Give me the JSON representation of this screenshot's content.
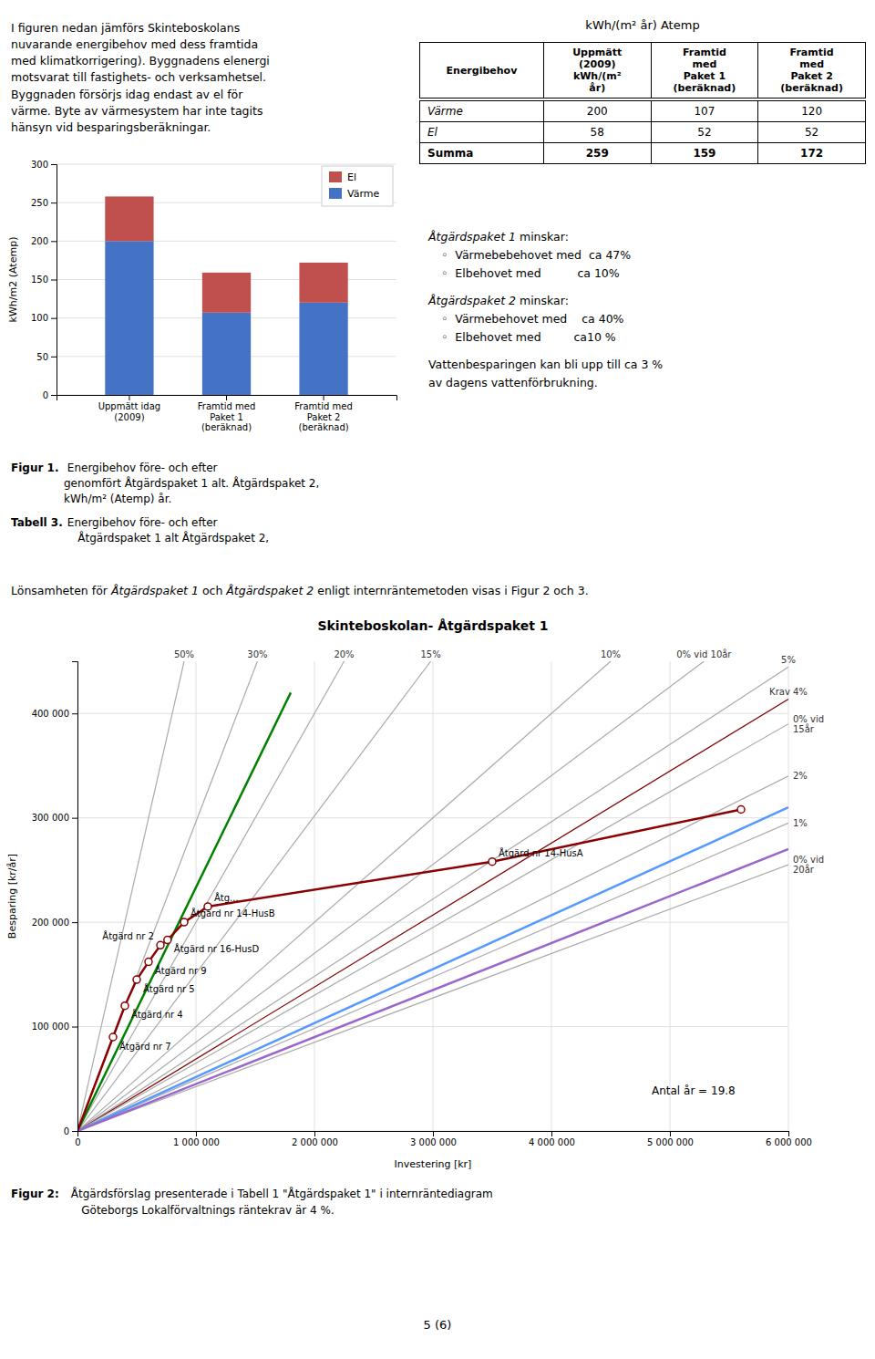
{
  "page": {
    "text_left": "I figuren nedan jämförs Skinteboskolans\nnuvarande energibehov med dess framtida\nmed klimatkorrigering). Byggnadens elenergi\nmotsvarat till fastighets- och verksamhetsel.\nByggnaden försörjs idag endast av el för\nvärme. Byte av värmesystem har inte tagits\nhänsyn vid besparingsberäkningar.",
    "table": {
      "title": "kWh/(m² år) Atemp",
      "headers": [
        "Energibehov",
        "Uppmätt\n(2009)\nkWh/(m²\når)",
        "Framtid\nmed\nPaket 1\n(beräknad)",
        "Framtid\nmed\nPaket 2\n(beräknad)"
      ],
      "rows": [
        [
          "Värme",
          "200",
          "107",
          "120"
        ],
        [
          "El",
          "58",
          "52",
          "52"
        ],
        [
          "Summa",
          "259",
          "159",
          "172"
        ]
      ]
    },
    "summary": [
      {
        "heading": "Åtgärdspaket 1",
        "text": " minskar:",
        "items": [
          "◦  Värmebebehovet med  ca 47%",
          "◦  Elbehovet med          ca 10%"
        ]
      },
      {
        "heading": "Åtgärdspaket 2",
        "text": " minskar:",
        "items": [
          "◦  Värmebehovet med    ca 40%",
          "◦  Elbehovet med         ca10 %"
        ]
      }
    ],
    "summary_note": "Vattenbesparingen kan bli upp till ca 3 %\nav dagens vattenförbrukning.",
    "captions": [
      {
        "label": "Figur 1.",
        "text": " Energibehov före- och efter\ngenomfört Åtgärdspaket 1 alt. Åtgärdspaket 2,\nkWh/m² (Atemp) år."
      },
      {
        "label": "Tabell 3.",
        "text": " Energibehov före- och efter\n    Åtgärdspaket 1 alt Åtgärdspaket 2,"
      }
    ],
    "intro_line": [
      {
        "text": "Lönsamheten för "
      },
      {
        "text": "Åtgärdspaket 1",
        "italic": true
      },
      {
        "text": " och "
      },
      {
        "text": "Åtgärdspaket 2",
        "italic": true
      },
      {
        "text": " enligt internräntemetoden visas i Figur 2 och 3."
      }
    ],
    "figure2_caption": {
      "label": "Figur 2:",
      "text": " Åtgärdsförslag presenterade i Tabell 1 \"Åtgärdspaket 1\" i internräntediagram\n    Göteborgs Lokalförvaltnings räntekrav är 4 %."
    },
    "page_number": "5 (6)"
  },
  "chart_data": [
    {
      "type": "bar",
      "stacked": true,
      "categories": [
        "Uppmätt idag\n(2009)",
        "Framtid med\nPaket 1\n(beräknad)",
        "Framtid med\nPaket 2\n(beräknad)"
      ],
      "series": [
        {
          "name": "Värme",
          "color": "#4472C4",
          "values": [
            200,
            107,
            120
          ]
        },
        {
          "name": "El",
          "color": "#C0504D",
          "values": [
            58,
            52,
            52
          ]
        }
      ],
      "ylabel": "kWh/m2 (Atemp)",
      "ylim": [
        0,
        300
      ],
      "yticks": [
        0,
        50,
        100,
        150,
        200,
        250,
        300
      ],
      "grid": "y",
      "legend": "upper right"
    },
    {
      "type": "line",
      "title": "Skinteboskolan- Åtgärdspaket 1",
      "xlabel": "Investering [kr]",
      "ylabel": "Besparing [kr/år]",
      "xlim": [
        0,
        6000000
      ],
      "ylim": [
        0,
        450000
      ],
      "xticks": [
        0,
        {
          "value": 1000000,
          "label": "1 000 000"
        },
        {
          "value": 2000000,
          "label": "2 000 000"
        },
        {
          "value": 3000000,
          "label": "3 000 000"
        },
        {
          "value": 4000000,
          "label": "4 000 000"
        },
        {
          "value": 5000000,
          "label": "5 000 000"
        },
        {
          "value": 6000000,
          "label": "6 000 000"
        }
      ],
      "yticks": [
        0,
        {
          "value": 100000,
          "label": "100 000"
        },
        {
          "value": 200000,
          "label": "200 000"
        },
        {
          "value": 300000,
          "label": "300 000"
        },
        {
          "value": 400000,
          "label": "400 000"
        }
      ],
      "grid": true,
      "annotation": "Antal år = 19.8",
      "series": [
        {
          "name": "50%",
          "color": "#aaaaaa",
          "x": [
            0,
            900000
          ],
          "values": [
            0,
            450000
          ]
        },
        {
          "name": "30%",
          "color": "#aaaaaa",
          "x": [
            0,
            1518750
          ],
          "values": [
            0,
            450000
          ]
        },
        {
          "name": "20%",
          "color": "#aaaaaa",
          "x": [
            0,
            2250000
          ],
          "values": [
            0,
            450000
          ]
        },
        {
          "name": "15%",
          "color": "#aaaaaa",
          "x": [
            0,
            2981250
          ],
          "values": [
            0,
            450000
          ]
        },
        {
          "name": "10%",
          "color": "#aaaaaa",
          "x": [
            0,
            4500000
          ],
          "values": [
            0,
            450000
          ]
        },
        {
          "name": "0% vid 10år",
          "color": "#aaaaaa",
          "x": [
            0,
            5287500
          ],
          "values": [
            0,
            450000
          ]
        },
        {
          "name": "5%",
          "color": "#aaaaaa",
          "x": [
            0,
            6000000
          ],
          "values": [
            0,
            444444.4444444444
          ]
        },
        {
          "name": "Krav 4%",
          "color": "#800000",
          "x": [
            0,
            6000000
          ],
          "values": [
            0,
            413793.1034482759
          ]
        },
        {
          "name": "0% vid\n15år",
          "color": "#aaaaaa",
          "x": [
            0,
            6000000
          ],
          "values": [
            0,
            390000
          ]
        },
        {
          "name": "2%",
          "color": "#aaaaaa",
          "x": [
            0,
            6000000
          ],
          "values": [
            0,
            340000
          ]
        },
        {
          "name": "1%",
          "color": "#aaaaaa",
          "x": [
            0,
            6000000
          ],
          "values": [
            0,
            295000
          ]
        },
        {
          "name": "0% vid\n20år",
          "color": "#aaaaaa",
          "x": [
            0,
            6000000
          ],
          "values": [
            0,
            255000
          ]
        },
        {
          "color": "green",
          "x": [
            0,
            1800000
          ],
          "values": [
            0,
            420000
          ]
        },
        {
          "color": "#5599FF",
          "x": [
            0,
            6000000
          ],
          "values": [
            0,
            310000
          ]
        },
        {
          "color": "#9966CC",
          "x": [
            0,
            6000000
          ],
          "values": [
            0,
            270000
          ]
        },
        {
          "color": "darkred",
          "x": [
            0,
            300000,
            400000,
            500000,
            600000,
            700000,
            760000,
            900000,
            1100000,
            3500000,
            5600000
          ],
          "values": [
            0,
            90000,
            120000,
            145000,
            162000,
            178000,
            183000,
            200000,
            215000,
            258000,
            308000
          ]
        },
        {
          "type": "scatter",
          "color": "darkred",
          "marker": "circle",
          "x": [
            300000,
            400000,
            500000,
            600000,
            700000,
            760000,
            900000,
            1100000,
            3500000,
            5600000
          ],
          "values": [
            90000,
            120000,
            145000,
            162000,
            178000,
            183000,
            200000,
            215000,
            258000,
            308000
          ],
          "labels": [
            "Åtgärd nr 7",
            "Åtgärd nr 4",
            "Åtgärd nr 5",
            "Åtgärd nr 9",
            "Åtgärd nr 2",
            "Åtgärd nr 16-HusD",
            "Åtgärd nr 14-HusB",
            "Åtg...",
            "Åtgärd nr 14-HusA",
            null
          ]
        }
      ]
    }
  ]
}
